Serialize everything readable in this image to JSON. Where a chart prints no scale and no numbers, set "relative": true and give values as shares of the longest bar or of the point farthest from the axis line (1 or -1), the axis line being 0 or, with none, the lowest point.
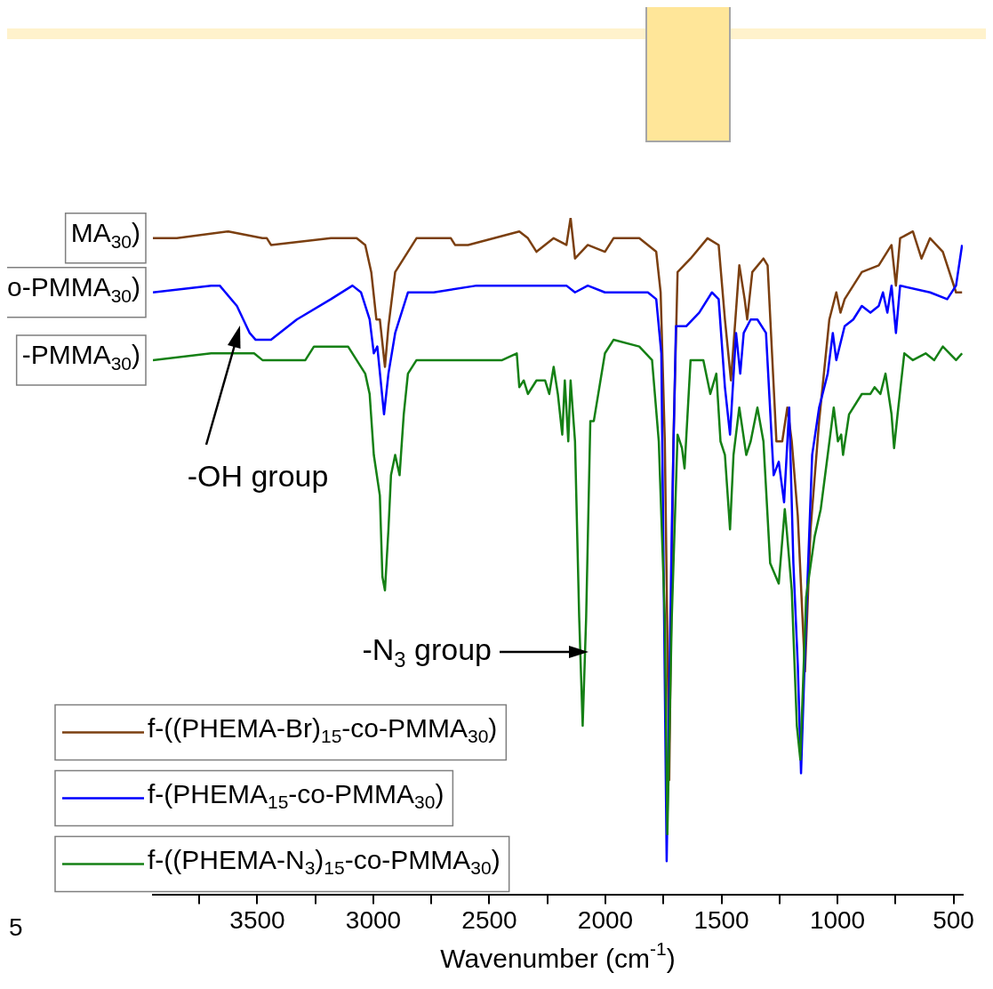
{
  "chart_data": {
    "type": "line",
    "relative": true,
    "xlabel": "Wavenumber (cm$^{-1}$)",
    "xlim": [
      3950,
      460
    ],
    "xticks": [
      {
        "value": 3750,
        "label": null
      },
      3500,
      {
        "value": 3250,
        "label": null
      },
      3000,
      {
        "value": 2750,
        "label": null
      },
      2500,
      {
        "value": 2250,
        "label": null
      },
      2000,
      {
        "value": 1750,
        "label": null
      },
      1500,
      {
        "value": 1250,
        "label": null
      },
      1000,
      {
        "value": 750,
        "label": null
      },
      500
    ],
    "legend": "bottom left",
    "annotations": [
      "MA$_{30}$)",
      "o-PMMA$_{30}$)",
      "-PMMA$_{30}$)",
      "5",
      "-OH group",
      "-N$_{3}$ group"
    ],
    "series": [
      {
        "name": "f-((PHEMA-Br)$_{15}$-co-PMMA$_{30}$)",
        "color": "#7b3f10",
        "x": [
          3950,
          3847,
          3625,
          3478,
          3459,
          3441,
          3183,
          3072,
          3035,
          3009,
          2987,
          2972,
          2950,
          2935,
          2906,
          2851,
          2814,
          2666,
          2648,
          2592,
          2371,
          2334,
          2297,
          2223,
          2168,
          2150,
          2131,
          2076,
          2002,
          1965,
          1854,
          1781,
          1762,
          1744,
          1725,
          1707,
          1689,
          1633,
          1560,
          1512,
          1485,
          1459,
          1423,
          1400,
          1389,
          1367,
          1319,
          1301,
          1263,
          1238,
          1216,
          1197,
          1171,
          1140,
          1116,
          1079,
          1035,
          1005,
          987,
          969,
          895,
          822,
          767,
          748,
          730,
          675,
          638,
          601,
          546,
          489,
          463
        ],
        "values": [
          0.97,
          0.97,
          0.98,
          0.97,
          0.97,
          0.96,
          0.97,
          0.97,
          0.96,
          0.92,
          0.85,
          0.85,
          0.78,
          0.84,
          0.92,
          0.95,
          0.97,
          0.97,
          0.96,
          0.96,
          0.98,
          0.97,
          0.95,
          0.97,
          0.96,
          1,
          0.94,
          0.96,
          0.95,
          0.97,
          0.97,
          0.95,
          0.89,
          0.67,
          0.17,
          0.67,
          0.92,
          0.94,
          0.97,
          0.96,
          0.85,
          0.76,
          0.93,
          0.88,
          0.85,
          0.92,
          0.94,
          0.93,
          0.67,
          0.67,
          0.72,
          0.67,
          0.56,
          0.33,
          0.54,
          0.7,
          0.85,
          0.89,
          0.86,
          0.88,
          0.92,
          0.93,
          0.96,
          0.9,
          0.97,
          0.98,
          0.94,
          0.97,
          0.95,
          0.89,
          0.89
        ]
      },
      {
        "name": "f-(PHEMA$_{15}$-co-PMMA$_{30}$)",
        "color": "#0000ff",
        "x": [
          3950,
          3699,
          3662,
          3588,
          3533,
          3507,
          3441,
          3330,
          3183,
          3090,
          3053,
          3016,
          2998,
          2983,
          2954,
          2935,
          2906,
          2851,
          2740,
          2555,
          2371,
          2223,
          2168,
          2131,
          2076,
          2002,
          1817,
          1781,
          1759,
          1736,
          1714,
          1696,
          1652,
          1596,
          1541,
          1512,
          1485,
          1463,
          1437,
          1419,
          1404,
          1374,
          1345,
          1308,
          1275,
          1253,
          1230,
          1208,
          1190,
          1171,
          1157,
          1135,
          1109,
          1079,
          1042,
          1020,
          1005,
          969,
          932,
          895,
          858,
          822,
          804,
          785,
          767,
          748,
          730,
          601,
          527,
          489,
          463
        ],
        "values": [
          0.89,
          0.9,
          0.9,
          0.87,
          0.83,
          0.82,
          0.82,
          0.85,
          0.88,
          0.9,
          0.89,
          0.85,
          0.8,
          0.81,
          0.71,
          0.77,
          0.83,
          0.89,
          0.89,
          0.9,
          0.9,
          0.9,
          0.9,
          0.89,
          0.9,
          0.89,
          0.89,
          0.88,
          0.8,
          0.05,
          0.54,
          0.84,
          0.84,
          0.86,
          0.89,
          0.88,
          0.75,
          0.68,
          0.83,
          0.77,
          0.83,
          0.85,
          0.85,
          0.83,
          0.62,
          0.64,
          0.58,
          0.72,
          0.49,
          0.34,
          0.18,
          0.41,
          0.65,
          0.72,
          0.77,
          0.83,
          0.79,
          0.84,
          0.85,
          0.87,
          0.86,
          0.87,
          0.89,
          0.86,
          0.9,
          0.83,
          0.9,
          0.89,
          0.88,
          0.9,
          0.96
        ]
      },
      {
        "name": "f-((PHEMA-N$_{3}$)$_{15}$-co-PMMA$_{30}$)",
        "color": "#158015",
        "x": [
          3950,
          3699,
          3514,
          3478,
          3441,
          3404,
          3330,
          3293,
          3256,
          3145,
          3109,
          3072,
          3035,
          3016,
          2998,
          2972,
          2961,
          2950,
          2935,
          2924,
          2906,
          2887,
          2869,
          2851,
          2814,
          2740,
          2611,
          2445,
          2382,
          2371,
          2352,
          2334,
          2297,
          2260,
          2242,
          2223,
          2205,
          2186,
          2175,
          2160,
          2150,
          2131,
          2113,
          2098,
          2083,
          2065,
          2050,
          2002,
          1965,
          1854,
          1799,
          1770,
          1744,
          1733,
          1714,
          1689,
          1670,
          1659,
          1633,
          1578,
          1560,
          1548,
          1522,
          1504,
          1485,
          1463,
          1448,
          1423,
          1393,
          1374,
          1345,
          1319,
          1290,
          1253,
          1227,
          1219,
          1197,
          1175,
          1160,
          1135,
          1098,
          1072,
          1042,
          1016,
          998,
          984,
          976,
          950,
          895,
          858,
          840,
          815,
          793,
          767,
          756,
          741,
          712,
          675,
          620,
          583,
          546,
          489,
          463
        ],
        "values": [
          0.79,
          0.8,
          0.8,
          0.79,
          0.79,
          0.79,
          0.79,
          0.79,
          0.81,
          0.81,
          0.81,
          0.79,
          0.77,
          0.74,
          0.65,
          0.59,
          0.47,
          0.45,
          0.54,
          0.62,
          0.65,
          0.62,
          0.71,
          0.77,
          0.79,
          0.79,
          0.79,
          0.79,
          0.8,
          0.75,
          0.76,
          0.74,
          0.76,
          0.76,
          0.74,
          0.78,
          0.74,
          0.68,
          0.76,
          0.67,
          0.76,
          0.67,
          0.41,
          0.25,
          0.41,
          0.7,
          0.7,
          0.8,
          0.82,
          0.81,
          0.79,
          0.67,
          0.41,
          0.09,
          0.41,
          0.68,
          0.66,
          0.63,
          0.79,
          0.79,
          0.76,
          0.74,
          0.77,
          0.67,
          0.65,
          0.54,
          0.65,
          0.72,
          0.65,
          0.67,
          0.72,
          0.67,
          0.49,
          0.46,
          0.57,
          0.54,
          0.45,
          0.25,
          0.2,
          0.44,
          0.53,
          0.57,
          0.65,
          0.72,
          0.67,
          0.68,
          0.65,
          0.71,
          0.74,
          0.74,
          0.75,
          0.74,
          0.77,
          0.71,
          0.66,
          0.71,
          0.8,
          0.79,
          0.8,
          0.79,
          0.81,
          0.79,
          0.8
        ]
      }
    ]
  }
}
